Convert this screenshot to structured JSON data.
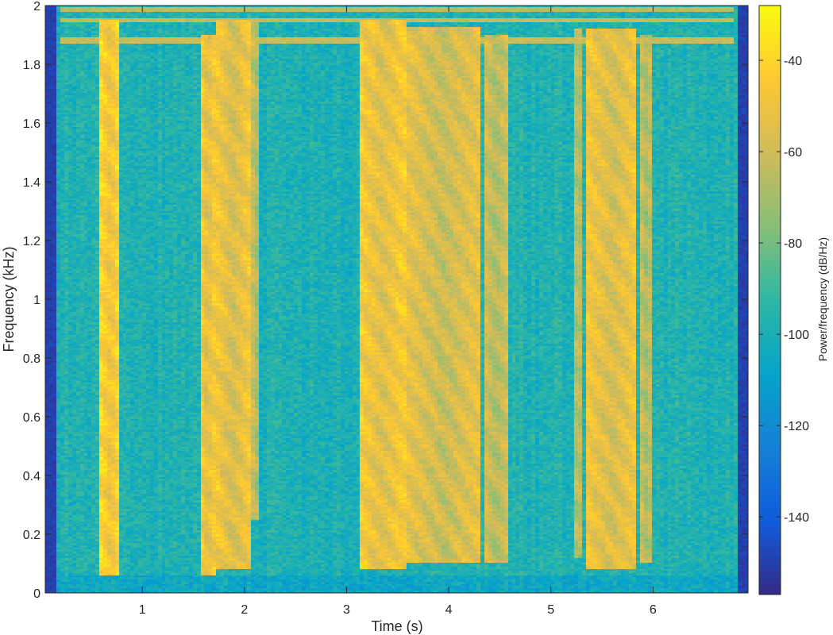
{
  "chart_data": {
    "type": "heatmap",
    "subtype": "spectrogram",
    "xlabel": "Time (s)",
    "ylabel": "Frequency (kHz)",
    "xlim": [
      0.05,
      6.93
    ],
    "ylim": [
      0,
      2
    ],
    "xticks": [
      1,
      2,
      3,
      4,
      5,
      6
    ],
    "yticks": [
      0,
      0.2,
      0.4,
      0.6,
      0.8,
      1,
      1.2,
      1.4,
      1.6,
      1.8,
      2
    ],
    "colorbar": {
      "label": "Power/frequency (dB/Hz)",
      "colormap": "parula",
      "clim": [
        -157,
        -28
      ],
      "ticks": [
        -140,
        -120,
        -100,
        -80,
        -60,
        -40
      ],
      "location": "right"
    },
    "background_level_db": -98,
    "edge_level_db": -150,
    "bands": [
      {
        "t_start": 0.6,
        "t_end": 0.78,
        "f_low": 0.06,
        "f_high": 1.95,
        "level_db": -50
      },
      {
        "t_start": 1.57,
        "t_end": 1.72,
        "f_low": 0.06,
        "f_high": 1.9,
        "level_db": -55
      },
      {
        "t_start": 1.74,
        "t_end": 2.05,
        "f_low": 0.08,
        "f_high": 1.95,
        "level_db": -58
      },
      {
        "t_start": 2.08,
        "t_end": 2.16,
        "f_low": 0.25,
        "f_high": 1.95,
        "level_db": -70
      },
      {
        "t_start": 3.13,
        "t_end": 3.58,
        "f_low": 0.08,
        "f_high": 1.95,
        "level_db": -55
      },
      {
        "t_start": 3.6,
        "t_end": 4.3,
        "f_low": 0.1,
        "f_high": 1.93,
        "level_db": -62
      },
      {
        "t_start": 4.35,
        "t_end": 4.58,
        "f_low": 0.1,
        "f_high": 1.9,
        "level_db": -68
      },
      {
        "t_start": 5.22,
        "t_end": 5.32,
        "f_low": 0.12,
        "f_high": 1.92,
        "level_db": -70
      },
      {
        "t_start": 5.36,
        "t_end": 5.85,
        "f_low": 0.08,
        "f_high": 1.92,
        "level_db": -58
      },
      {
        "t_start": 5.88,
        "t_end": 6.0,
        "f_low": 0.1,
        "f_high": 1.9,
        "level_db": -70
      }
    ],
    "horizontal_lines": [
      {
        "f": 1.88,
        "t_start": 0.2,
        "t_end": 6.8,
        "level_db": -62
      },
      {
        "f": 1.95,
        "t_start": 0.2,
        "t_end": 6.8,
        "level_db": -64
      },
      {
        "f": 1.985,
        "t_start": 0.2,
        "t_end": 6.8,
        "level_db": -66
      }
    ]
  }
}
